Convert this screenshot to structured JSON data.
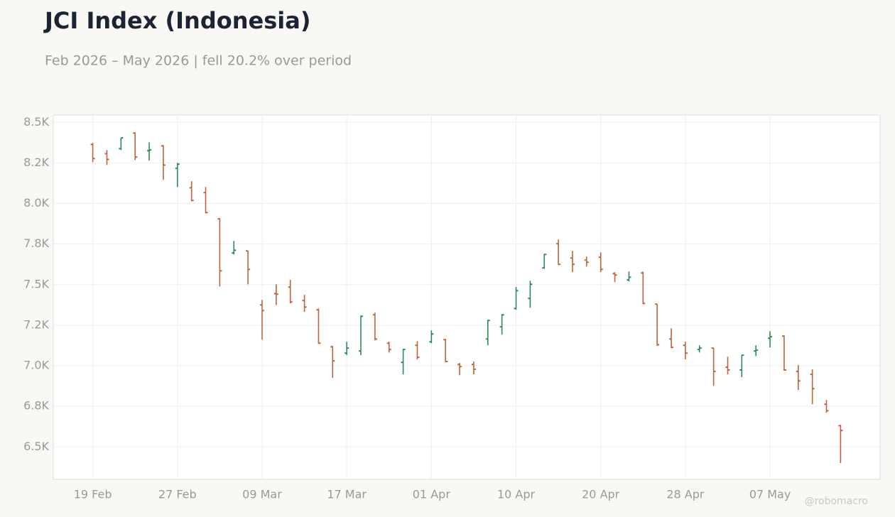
{
  "chart_data": {
    "type": "ohlc",
    "title": "JCI Index (Indonesia)",
    "subtitle": "Feb 2026 – May 2026 | fell 20.2% over period",
    "watermark": "@robomacro",
    "categories": [
      "19 Feb",
      null,
      null,
      null,
      null,
      null,
      "27 Feb",
      null,
      null,
      null,
      null,
      null,
      "09 Mar",
      null,
      null,
      null,
      null,
      null,
      "17 Mar",
      null,
      null,
      null,
      null,
      null,
      "01 Apr",
      null,
      null,
      null,
      null,
      null,
      "10 Apr",
      null,
      null,
      null,
      null,
      null,
      "20 Apr",
      null,
      null,
      null,
      null,
      null,
      "28 Apr",
      null,
      null,
      null,
      null,
      null,
      "07 May",
      null,
      null,
      null,
      null,
      null
    ],
    "open": [
      8364,
      8307,
      8338,
      8434,
      8325,
      8355,
      8216,
      8097,
      8067,
      7905,
      7695,
      7708,
      7375,
      7445,
      7485,
      7402,
      7345,
      7117,
      7078,
      7091,
      7314,
      7139,
      7021,
      7126,
      7148,
      7161,
      7008,
      7008,
      7165,
      7240,
      7353,
      7415,
      7603,
      7752,
      7664,
      7651,
      7669,
      7568,
      7529,
      7572,
      7380,
      7165,
      7126,
      7100,
      7109,
      6991,
      6974,
      7091,
      7170,
      7183,
      6965,
      6947,
      6763,
      6631
    ],
    "high": [
      8373,
      8329,
      8404,
      8439,
      8377,
      8360,
      8250,
      8137,
      8102,
      7909,
      7769,
      7708,
      7406,
      7502,
      7529,
      7437,
      7353,
      7122,
      7148,
      7310,
      7327,
      7148,
      7104,
      7152,
      7218,
      7165,
      7017,
      7026,
      7283,
      7318,
      7485,
      7524,
      7690,
      7778,
      7708,
      7673,
      7699,
      7577,
      7581,
      7581,
      7380,
      7231,
      7148,
      7126,
      7109,
      7056,
      7069,
      7126,
      7213,
      7187,
      7004,
      6978,
      6789,
      6636
    ],
    "low": [
      8255,
      8237,
      8329,
      8268,
      8264,
      8146,
      8102,
      8014,
      7940,
      7489,
      7686,
      7502,
      7161,
      7375,
      7384,
      7332,
      7135,
      6925,
      7065,
      7065,
      7157,
      7082,
      6947,
      7039,
      7139,
      7021,
      6942,
      6947,
      7126,
      7192,
      7345,
      7358,
      7599,
      7621,
      7577,
      7612,
      7577,
      7515,
      7520,
      7380,
      7122,
      7109,
      7039,
      7082,
      6876,
      6947,
      6930,
      7060,
      7113,
      6969,
      6850,
      6763,
      6710,
      6400
    ],
    "close": [
      8277,
      8272,
      8404,
      8286,
      8330,
      8237,
      8242,
      8019,
      7944,
      7585,
      7712,
      7594,
      7340,
      7441,
      7393,
      7362,
      7139,
      7030,
      7109,
      7305,
      7165,
      7100,
      7100,
      7052,
      7196,
      7026,
      6995,
      6978,
      7279,
      7314,
      7463,
      7502,
      7686,
      7625,
      7625,
      7638,
      7594,
      7559,
      7546,
      7384,
      7130,
      7113,
      7078,
      7109,
      6965,
      6974,
      7065,
      7096,
      7179,
      6974,
      6907,
      6859,
      6723,
      6601
    ],
    "up_color": "#2e8b57",
    "down_color": "#c0623c",
    "ylim": [
      6300,
      8545
    ],
    "yticks": [
      {
        "value": 6500,
        "label": "6.5K"
      },
      {
        "value": 6750,
        "label": "6.8K"
      },
      {
        "value": 7000,
        "label": "7.0K"
      },
      {
        "value": 7250,
        "label": "7.2K"
      },
      {
        "value": 7500,
        "label": "7.5K"
      },
      {
        "value": 7750,
        "label": "7.8K"
      },
      {
        "value": 8000,
        "label": "8.0K"
      },
      {
        "value": 8250,
        "label": "8.2K"
      },
      {
        "value": 8500,
        "label": "8.5K"
      }
    ],
    "grid": true
  }
}
